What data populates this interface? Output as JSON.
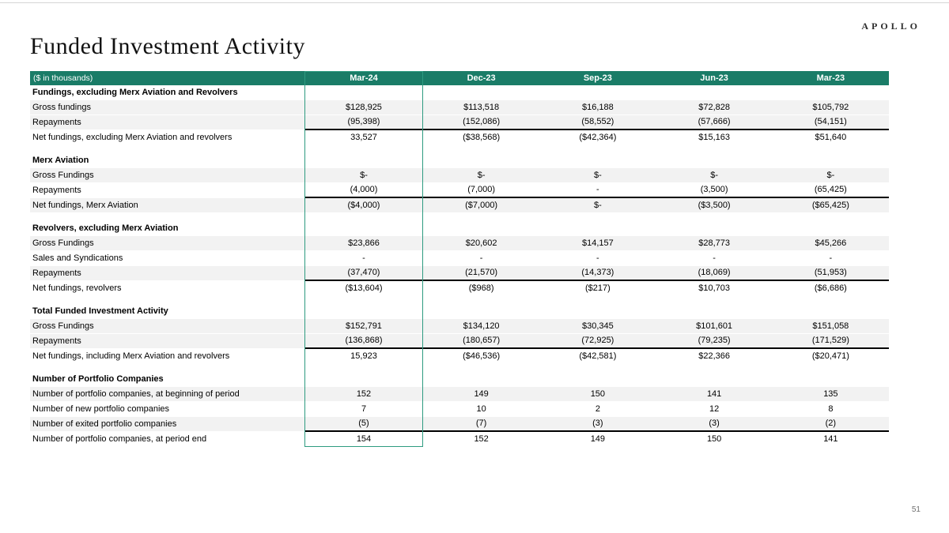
{
  "page": {
    "title": "Funded Investment Activity",
    "logo": "APOLLO",
    "page_number": "51"
  },
  "table": {
    "unit_label": "($ in thousands)",
    "columns": [
      "Mar-24",
      "Dec-23",
      "Sep-23",
      "Jun-23",
      "Mar-23"
    ],
    "highlighted_column": "Mar-24",
    "colors": {
      "header_bg": "#1A7C67",
      "highlight_border": "#2E9B80",
      "row_shade": "#F2F2F2"
    },
    "sections": [
      {
        "heading": "Fundings, excluding Merx Aviation and Revolvers",
        "rows": [
          {
            "label": "Gross fundings",
            "values": [
              "$128,925",
              "$113,518",
              "$16,188",
              "$72,828",
              "$105,792"
            ],
            "shaded": true,
            "sumline": false
          },
          {
            "label": "Repayments",
            "values": [
              "(95,398)",
              "(152,086)",
              "(58,552)",
              "(57,666)",
              "(54,151)"
            ],
            "shaded": true,
            "sumline": true
          },
          {
            "label": "Net fundings, excluding Merx Aviation and revolvers",
            "values": [
              "33,527",
              "($38,568)",
              "($42,364)",
              "$15,163",
              "$51,640"
            ],
            "shaded": false,
            "sumline": false
          }
        ]
      },
      {
        "heading": "Merx Aviation",
        "rows": [
          {
            "label": "Gross Fundings",
            "values": [
              "$-",
              "$-",
              "$-",
              "$-",
              "$-"
            ],
            "shaded": true,
            "sumline": false
          },
          {
            "label": "Repayments",
            "values": [
              "(4,000)",
              "(7,000)",
              "-",
              "(3,500)",
              "(65,425)"
            ],
            "shaded": false,
            "sumline": true
          },
          {
            "label": "Net fundings, Merx Aviation",
            "values": [
              "($4,000)",
              "($7,000)",
              "$-",
              "($3,500)",
              "($65,425)"
            ],
            "shaded": true,
            "sumline": false
          }
        ]
      },
      {
        "heading": "Revolvers, excluding Merx Aviation",
        "rows": [
          {
            "label": "Gross Fundings",
            "values": [
              "$23,866",
              "$20,602",
              "$14,157",
              "$28,773",
              "$45,266"
            ],
            "shaded": true,
            "sumline": false
          },
          {
            "label": "Sales and Syndications",
            "values": [
              "-",
              "-",
              "-",
              "-",
              "-"
            ],
            "shaded": false,
            "sumline": false
          },
          {
            "label": "Repayments",
            "values": [
              "(37,470)",
              "(21,570)",
              "(14,373)",
              "(18,069)",
              "(51,953)"
            ],
            "shaded": true,
            "sumline": true
          },
          {
            "label": "Net fundings, revolvers",
            "values": [
              "($13,604)",
              "($968)",
              "($217)",
              "$10,703",
              "($6,686)"
            ],
            "shaded": false,
            "sumline": false
          }
        ]
      },
      {
        "heading": "Total Funded Investment Activity",
        "rows": [
          {
            "label": "Gross Fundings",
            "values": [
              "$152,791",
              "$134,120",
              "$30,345",
              "$101,601",
              "$151,058"
            ],
            "shaded": true,
            "sumline": false
          },
          {
            "label": "Repayments",
            "values": [
              "(136,868)",
              "(180,657)",
              "(72,925)",
              "(79,235)",
              "(171,529)"
            ],
            "shaded": true,
            "sumline": true
          },
          {
            "label": "Net fundings, including Merx Aviation and revolvers",
            "values": [
              "15,923",
              "($46,536)",
              "($42,581)",
              "$22,366",
              "($20,471)"
            ],
            "shaded": false,
            "sumline": false
          }
        ]
      },
      {
        "heading": "Number of Portfolio Companies",
        "rows": [
          {
            "label": "Number of portfolio companies, at beginning of period",
            "values": [
              "152",
              "149",
              "150",
              "141",
              "135"
            ],
            "shaded": true,
            "sumline": false
          },
          {
            "label": "Number of new portfolio companies",
            "values": [
              "7",
              "10",
              "2",
              "12",
              "8"
            ],
            "shaded": false,
            "sumline": false
          },
          {
            "label": "Number of exited portfolio companies",
            "values": [
              "(5)",
              "(7)",
              "(3)",
              "(3)",
              "(2)"
            ],
            "shaded": true,
            "sumline": true
          },
          {
            "label": "Number of portfolio companies, at period end",
            "values": [
              "154",
              "152",
              "149",
              "150",
              "141"
            ],
            "shaded": false,
            "sumline": false
          }
        ]
      }
    ]
  }
}
